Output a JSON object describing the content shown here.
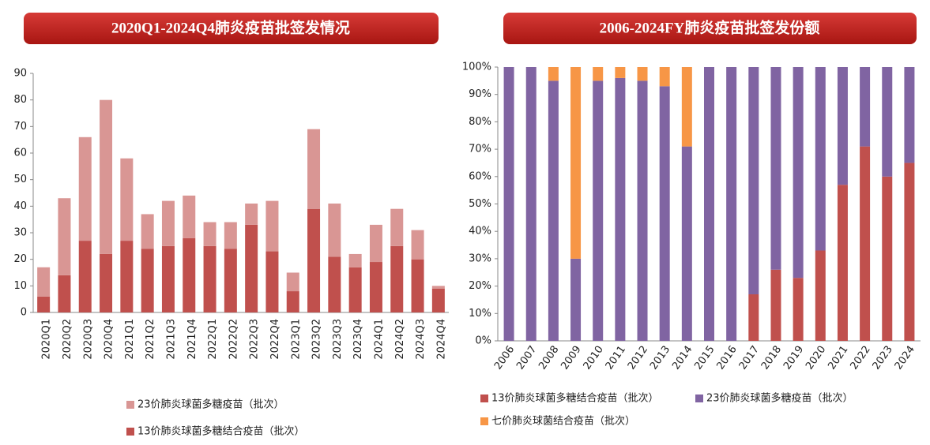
{
  "chart_data": [
    {
      "type": "bar",
      "stacked": true,
      "title": "2020Q1-2024Q4肺炎疫苗批签发情况",
      "categories": [
        "2020Q1",
        "2020Q2",
        "2020Q3",
        "2020Q4",
        "2021Q1",
        "2021Q2",
        "2021Q3",
        "2021Q4",
        "2022Q1",
        "2022Q2",
        "2022Q3",
        "2022Q4",
        "2023Q1",
        "2023Q2",
        "2023Q3",
        "2023Q4",
        "2024Q1",
        "2024Q2",
        "2024Q3",
        "2024Q4"
      ],
      "series": [
        {
          "name": "13价肺炎球菌多糖结合疫苗（批次）",
          "color": "#c0504d",
          "values": [
            6,
            14,
            27,
            22,
            27,
            24,
            25,
            28,
            25,
            24,
            33,
            23,
            8,
            39,
            21,
            17,
            19,
            25,
            20,
            9
          ]
        },
        {
          "name": "23价肺炎球菌多糖疫苗（批次）",
          "color": "#d99694",
          "values": [
            11,
            29,
            39,
            58,
            31,
            13,
            17,
            16,
            9,
            10,
            8,
            19,
            7,
            30,
            20,
            5,
            14,
            14,
            11,
            1
          ]
        }
      ],
      "ylim": [
        0,
        90
      ],
      "yticks": [
        0,
        10,
        20,
        30,
        40,
        50,
        60,
        70,
        80,
        90
      ]
    },
    {
      "type": "bar",
      "stacked": true,
      "title": "2006-2024FY肺炎疫苗批签发份额",
      "categories": [
        "2006",
        "2007",
        "2008",
        "2009",
        "2010",
        "2011",
        "2012",
        "2013",
        "2014",
        "2015",
        "2016",
        "2017",
        "2018",
        "2019",
        "2020",
        "2021",
        "2022",
        "2023",
        "2024"
      ],
      "series": [
        {
          "name": "13价肺炎球菌多糖结合疫苗（批次）",
          "color": "#c0504d",
          "values": [
            0,
            0,
            0,
            0,
            0,
            0,
            0,
            0,
            0,
            0,
            0,
            17,
            26,
            23,
            33,
            57,
            71,
            60,
            65
          ]
        },
        {
          "name": "23价肺炎球菌多糖疫苗（批次）",
          "color": "#8064a2",
          "values": [
            100,
            100,
            95,
            30,
            95,
            96,
            95,
            93,
            71,
            100,
            100,
            83,
            74,
            77,
            67,
            43,
            29,
            40,
            35
          ]
        },
        {
          "name": "七价肺炎球菌结合疫苗（批次）",
          "color": "#f79646",
          "values": [
            0,
            0,
            5,
            70,
            5,
            4,
            5,
            7,
            29,
            0,
            0,
            0,
            0,
            0,
            0,
            0,
            0,
            0,
            0
          ]
        }
      ],
      "ylim": [
        0,
        100
      ],
      "yticks": [
        {
          "value": 0,
          "label": "0%"
        },
        {
          "value": 10,
          "label": "10%"
        },
        {
          "value": 20,
          "label": "20%"
        },
        {
          "value": 30,
          "label": "30%"
        },
        {
          "value": 40,
          "label": "40%"
        },
        {
          "value": 50,
          "label": "50%"
        },
        {
          "value": 60,
          "label": "60%"
        },
        {
          "value": 70,
          "label": "70%"
        },
        {
          "value": 80,
          "label": "80%"
        },
        {
          "value": 90,
          "label": "90%"
        },
        {
          "value": 100,
          "label": "100%"
        }
      ]
    }
  ]
}
